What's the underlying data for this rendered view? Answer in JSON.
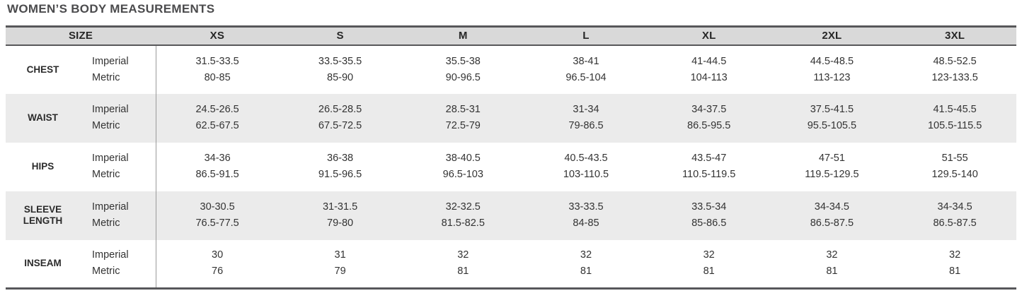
{
  "title": "WOMEN’S BODY MEASUREMENTS",
  "colors": {
    "header_bg": "#d9d9d9",
    "stripe_bg": "#ebebeb",
    "border_dark": "#57575a",
    "divider_gray": "#9a9a9a",
    "title_text": "#4b4b4d",
    "body_text": "#333333"
  },
  "table": {
    "size_header": "SIZE",
    "sizes": [
      "XS",
      "S",
      "M",
      "L",
      "XL",
      "2XL",
      "3XL"
    ],
    "unit_labels": {
      "imperial": "Imperial",
      "metric": "Metric"
    },
    "rows": [
      {
        "label": "CHEST",
        "imperial": [
          "31.5-33.5",
          "33.5-35.5",
          "35.5-38",
          "38-41",
          "41-44.5",
          "44.5-48.5",
          "48.5-52.5"
        ],
        "metric": [
          "80-85",
          "85-90",
          "90-96.5",
          "96.5-104",
          "104-113",
          "113-123",
          "123-133.5"
        ]
      },
      {
        "label": "WAIST",
        "imperial": [
          "24.5-26.5",
          "26.5-28.5",
          "28.5-31",
          "31-34",
          "34-37.5",
          "37.5-41.5",
          "41.5-45.5"
        ],
        "metric": [
          "62.5-67.5",
          "67.5-72.5",
          "72.5-79",
          "79-86.5",
          "86.5-95.5",
          "95.5-105.5",
          "105.5-115.5"
        ]
      },
      {
        "label": "HIPS",
        "imperial": [
          "34-36",
          "36-38",
          "38-40.5",
          "40.5-43.5",
          "43.5-47",
          "47-51",
          "51-55"
        ],
        "metric": [
          "86.5-91.5",
          "91.5-96.5",
          "96.5-103",
          "103-110.5",
          "110.5-119.5",
          "119.5-129.5",
          "129.5-140"
        ]
      },
      {
        "label": "SLEEVE LENGTH",
        "imperial": [
          "30-30.5",
          "31-31.5",
          "32-32.5",
          "33-33.5",
          "33.5-34",
          "34-34.5",
          "34-34.5"
        ],
        "metric": [
          "76.5-77.5",
          "79-80",
          "81.5-82.5",
          "84-85",
          "85-86.5",
          "86.5-87.5",
          "86.5-87.5"
        ]
      },
      {
        "label": "INSEAM",
        "imperial": [
          "30",
          "31",
          "32",
          "32",
          "32",
          "32",
          "32"
        ],
        "metric": [
          "76",
          "79",
          "81",
          "81",
          "81",
          "81",
          "81"
        ]
      }
    ]
  }
}
